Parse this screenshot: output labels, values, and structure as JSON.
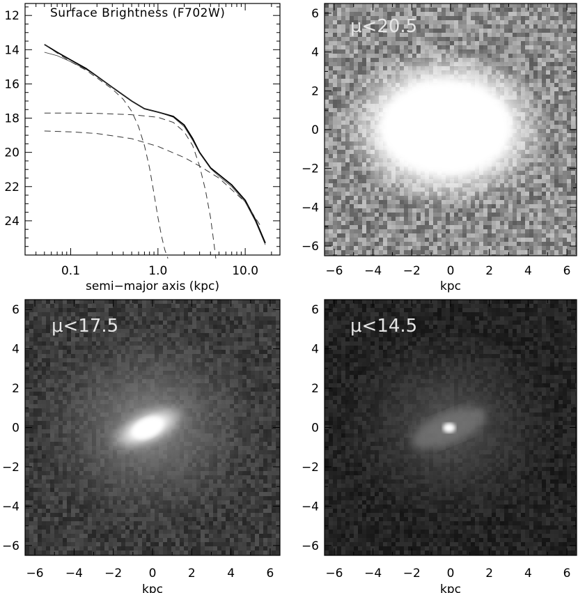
{
  "chart_data": [
    {
      "panel": "profile",
      "type": "line",
      "title": "Surface Brightness (F702W)",
      "xlabel": "semi−major axis (kpc)",
      "ylabel": "",
      "xscale": "log",
      "xlim": [
        0.03,
        25
      ],
      "ylim": [
        26,
        11.3
      ],
      "xticks": [
        "0.1",
        "1.0",
        "10.0"
      ],
      "yticks": [
        "12",
        "14",
        "16",
        "18",
        "20",
        "22",
        "24"
      ],
      "series": [
        {
          "style": "solid-thick",
          "x": [
            0.05,
            0.07,
            0.1,
            0.15,
            0.2,
            0.3,
            0.5,
            0.7,
            1.0,
            1.5,
            2.0,
            2.5,
            3.0,
            4.0,
            5.0,
            7.0,
            10.0,
            13.0,
            17.0
          ],
          "y": [
            13.7,
            14.15,
            14.6,
            15.1,
            15.55,
            16.2,
            17.0,
            17.45,
            17.65,
            17.9,
            18.4,
            19.2,
            20.0,
            20.9,
            21.3,
            21.9,
            22.8,
            23.9,
            25.3
          ]
        },
        {
          "style": "solid-thin",
          "x": [
            0.05,
            0.07,
            0.1,
            0.15,
            0.2,
            0.3,
            0.5,
            0.7,
            1.0,
            1.5,
            2.0,
            2.5,
            3.0,
            4.0,
            5.0,
            7.0,
            10.0,
            13.0,
            17.0
          ],
          "y": [
            14.15,
            14.35,
            14.7,
            15.15,
            15.55,
            16.2,
            17.0,
            17.45,
            17.65,
            17.95,
            18.5,
            19.3,
            20.05,
            20.95,
            21.4,
            22.0,
            22.9,
            24.0,
            25.4
          ]
        },
        {
          "style": "dashed",
          "x": [
            0.05,
            0.07,
            0.1,
            0.15,
            0.2,
            0.3,
            0.4,
            0.5,
            0.6,
            0.7,
            0.8,
            0.9,
            1.0,
            1.1,
            1.2,
            1.3
          ],
          "y": [
            13.7,
            14.2,
            14.7,
            15.2,
            15.65,
            16.3,
            16.9,
            17.6,
            18.5,
            19.6,
            20.9,
            22.4,
            23.8,
            24.9,
            25.7,
            26.2
          ]
        },
        {
          "style": "dashed",
          "x": [
            0.05,
            0.1,
            0.2,
            0.5,
            1.0,
            1.5,
            2.0,
            2.5,
            3.0,
            3.5,
            4.0,
            4.3,
            4.6
          ],
          "y": [
            17.7,
            17.7,
            17.72,
            17.8,
            17.95,
            18.25,
            18.8,
            19.6,
            20.8,
            22.2,
            23.8,
            25.0,
            26.2
          ]
        },
        {
          "style": "dashed",
          "x": [
            0.05,
            0.1,
            0.2,
            0.5,
            1.0,
            2.0,
            3.0,
            5.0,
            10.0,
            15.0
          ],
          "y": [
            18.75,
            18.8,
            18.9,
            19.2,
            19.65,
            20.3,
            20.8,
            21.5,
            22.9,
            24.3
          ]
        }
      ]
    },
    {
      "panel": "map-1",
      "type": "heatmap",
      "label": "μ<20.5",
      "xlabel": "kpc",
      "xlim": [
        -6.5,
        6.5
      ],
      "ylim": [
        -6.5,
        6.5
      ],
      "ticks": [
        "−6",
        "−4",
        "−2",
        "0",
        "2",
        "4",
        "6"
      ]
    },
    {
      "panel": "map-2",
      "type": "heatmap",
      "label": "μ<17.5",
      "xlabel": "kpc",
      "xlim": [
        -6.5,
        6.5
      ],
      "ylim": [
        -6.5,
        6.5
      ],
      "ticks": [
        "−6",
        "−4",
        "−2",
        "0",
        "2",
        "4",
        "6"
      ]
    },
    {
      "panel": "map-3",
      "type": "heatmap",
      "label": "μ<14.5",
      "xlabel": "kpc",
      "xlim": [
        -6.5,
        6.5
      ],
      "ylim": [
        -6.5,
        6.5
      ],
      "ticks": [
        "−6",
        "−4",
        "−2",
        "0",
        "2",
        "4",
        "6"
      ]
    }
  ]
}
